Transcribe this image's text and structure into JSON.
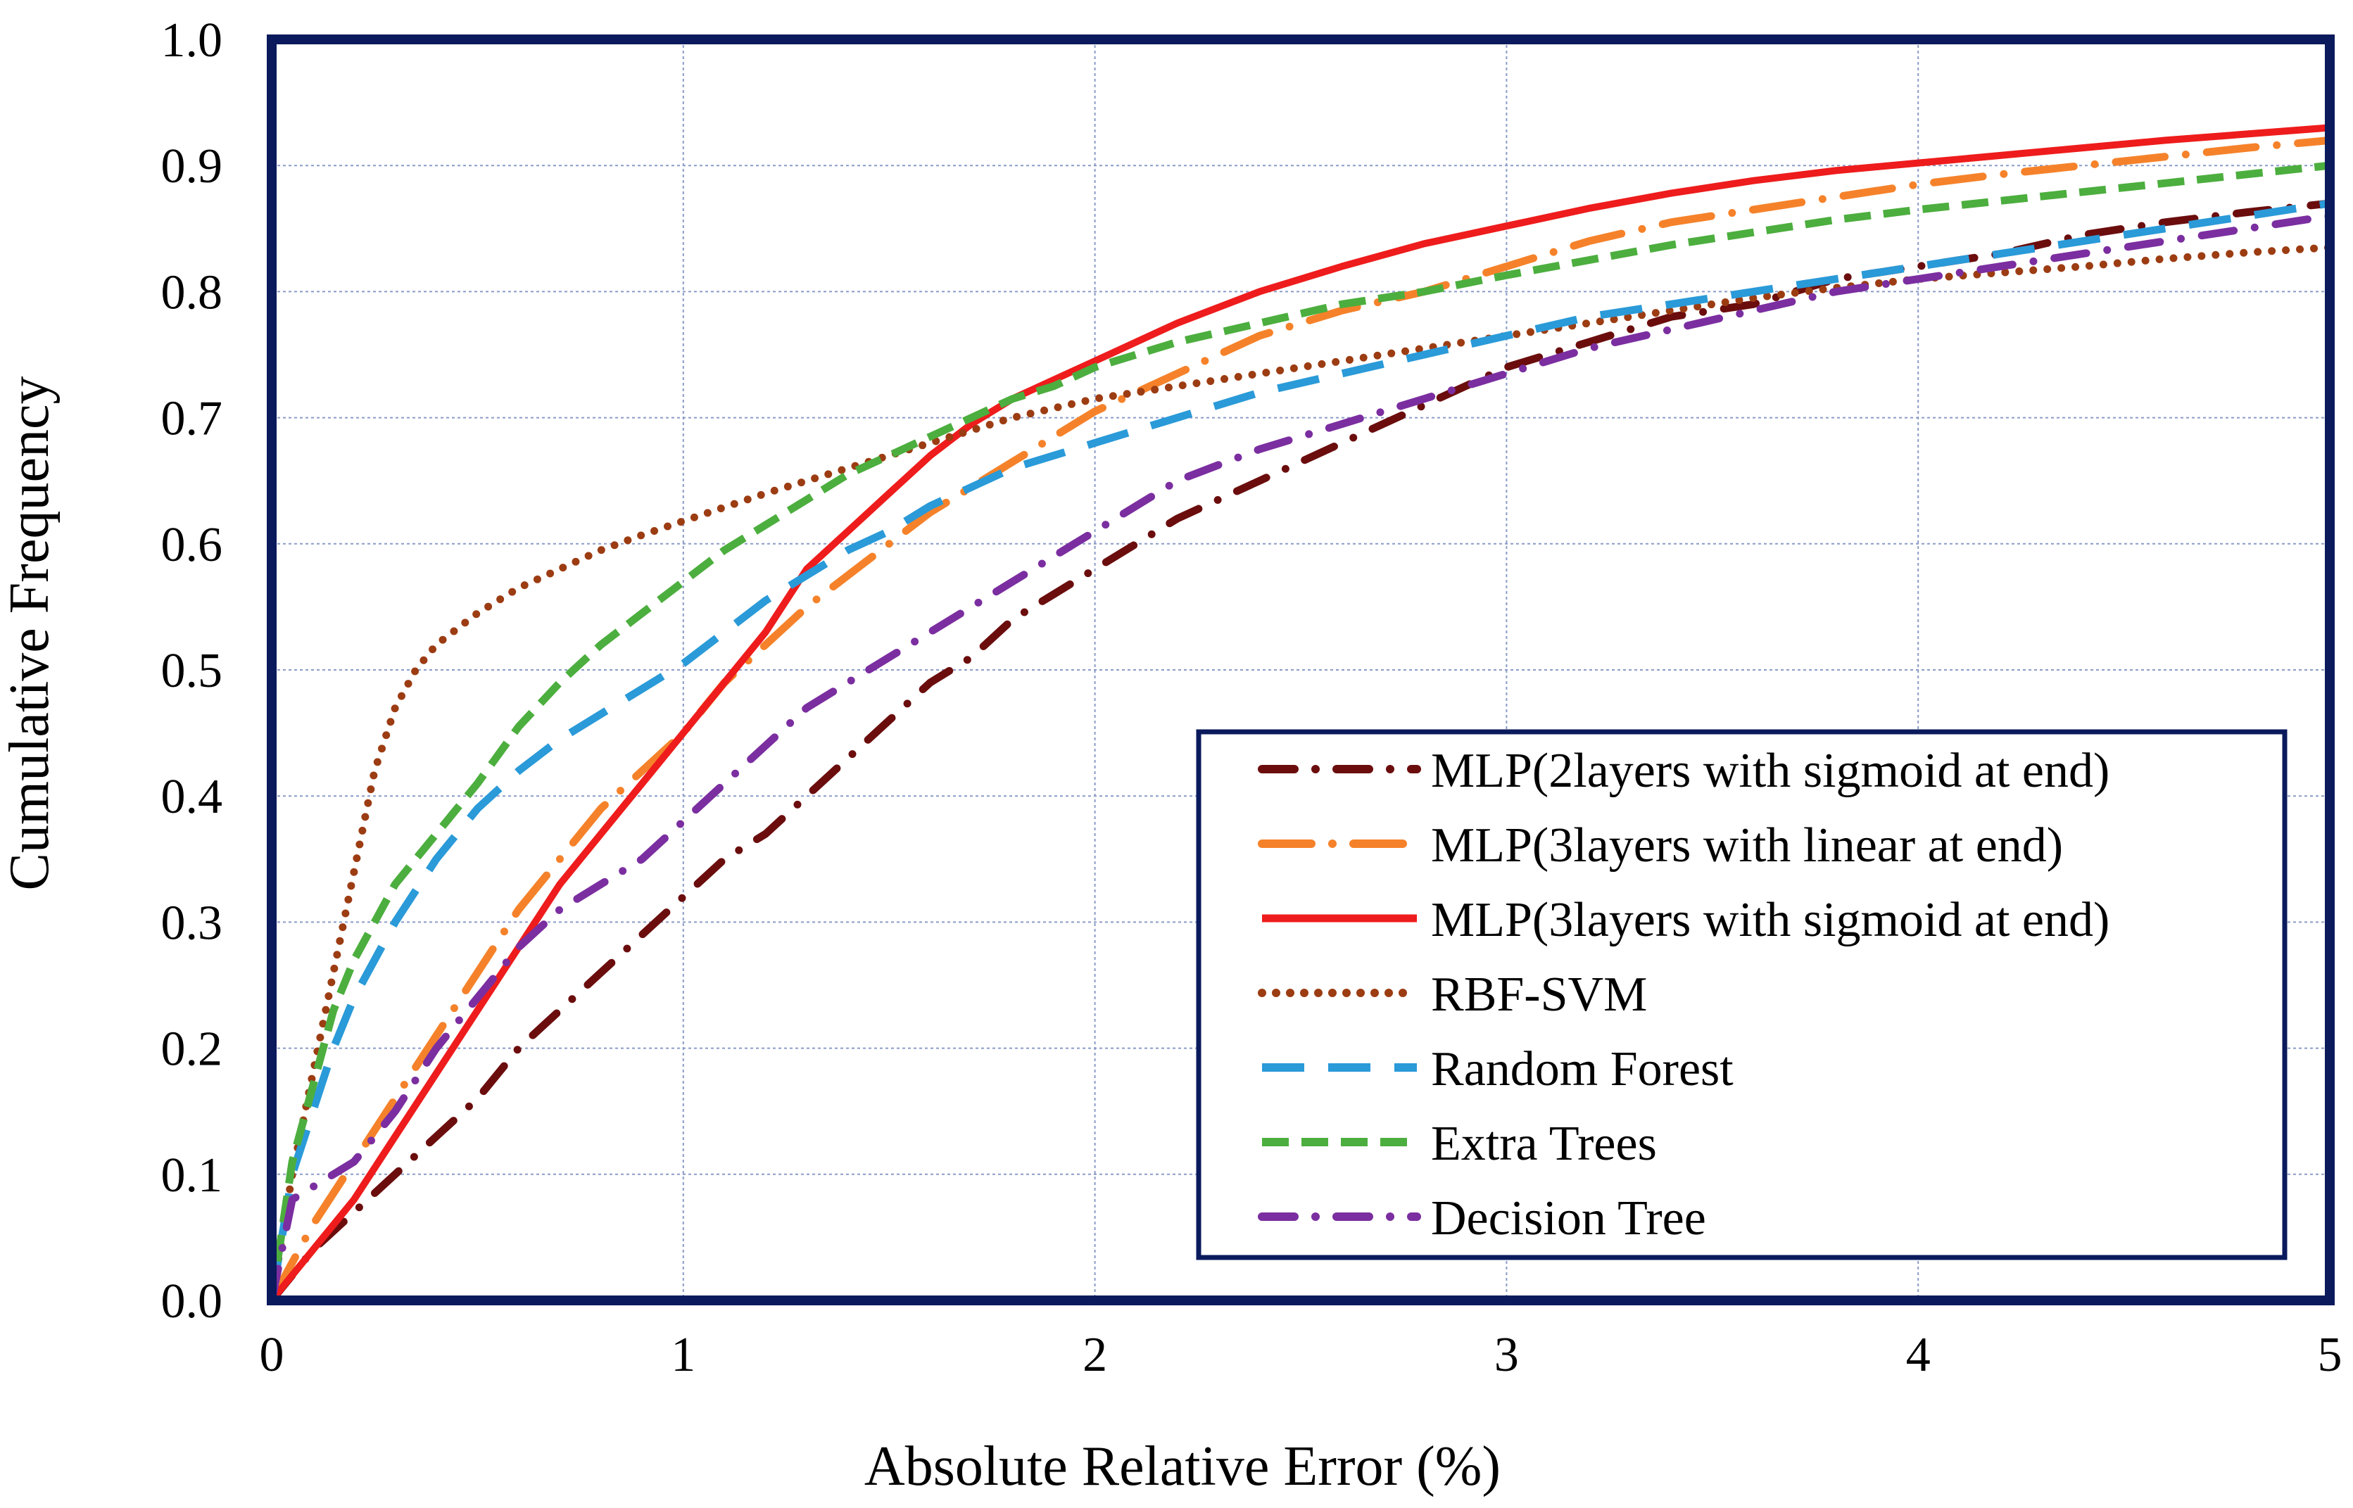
{
  "chart_data": {
    "type": "line",
    "title": "",
    "xlabel": "Absolute Relative Error (%)",
    "ylabel": "Cumulative Frequency",
    "xlim": [
      0,
      5
    ],
    "ylim": [
      0,
      1
    ],
    "xticks": [
      0,
      1,
      2,
      3,
      4,
      5
    ],
    "yticks": [
      0,
      0.1,
      0.2,
      0.3,
      0.4,
      0.5,
      0.6,
      0.7,
      0.8,
      0.9,
      1
    ],
    "xtick_labels": [
      "0",
      "1",
      "2",
      "3",
      "4",
      "5"
    ],
    "ytick_labels": [
      "0.0",
      "0.1",
      "0.2",
      "0.3",
      "0.4",
      "0.5",
      "0.6",
      "0.7",
      "0.8",
      "0.9",
      "1.0"
    ],
    "grid": true,
    "legend_position": "bottom-right",
    "frame_color": "#0a1a5c",
    "grid_color": "#8a9bc6",
    "series": [
      {
        "name": "MLP(2layers with sigmoid at end)",
        "color": "#6b0d0d",
        "style": "dash-dot",
        "x": [
          0,
          0.1,
          0.2,
          0.3,
          0.4,
          0.5,
          0.6,
          0.7,
          0.8,
          0.9,
          1.0,
          1.1,
          1.2,
          1.3,
          1.4,
          1.5,
          1.6,
          1.7,
          1.8,
          1.9,
          2.0,
          2.2,
          2.4,
          2.6,
          2.8,
          3.0,
          3.2,
          3.4,
          3.6,
          3.8,
          4.0,
          4.2,
          4.4,
          4.6,
          4.8,
          5.0
        ],
        "y": [
          0.0,
          0.04,
          0.07,
          0.1,
          0.13,
          0.16,
          0.2,
          0.23,
          0.26,
          0.29,
          0.32,
          0.35,
          0.37,
          0.4,
          0.43,
          0.46,
          0.49,
          0.51,
          0.54,
          0.56,
          0.58,
          0.62,
          0.65,
          0.68,
          0.71,
          0.74,
          0.76,
          0.78,
          0.79,
          0.81,
          0.82,
          0.83,
          0.845,
          0.855,
          0.863,
          0.87
        ]
      },
      {
        "name": "MLP(3layers with linear at end)",
        "color": "#f5822a",
        "style": "long-dash-dot",
        "x": [
          0,
          0.1,
          0.2,
          0.3,
          0.4,
          0.5,
          0.6,
          0.7,
          0.8,
          0.9,
          1.0,
          1.1,
          1.2,
          1.3,
          1.4,
          1.5,
          1.6,
          1.7,
          1.8,
          1.9,
          2.0,
          2.2,
          2.4,
          2.6,
          2.8,
          3.0,
          3.2,
          3.4,
          3.6,
          3.8,
          4.0,
          4.2,
          4.4,
          4.6,
          4.8,
          5.0
        ],
        "y": [
          0.0,
          0.06,
          0.11,
          0.16,
          0.21,
          0.26,
          0.31,
          0.35,
          0.39,
          0.42,
          0.45,
          0.49,
          0.52,
          0.55,
          0.575,
          0.6,
          0.625,
          0.645,
          0.665,
          0.685,
          0.705,
          0.735,
          0.765,
          0.785,
          0.8,
          0.82,
          0.84,
          0.855,
          0.865,
          0.875,
          0.885,
          0.893,
          0.9,
          0.907,
          0.914,
          0.92
        ]
      },
      {
        "name": "MLP(3layers with sigmoid at end)",
        "color": "#ee1c1c",
        "style": "solid",
        "x": [
          0,
          0.1,
          0.2,
          0.3,
          0.4,
          0.5,
          0.6,
          0.7,
          0.8,
          0.9,
          1.0,
          1.1,
          1.2,
          1.3,
          1.4,
          1.5,
          1.6,
          1.7,
          1.8,
          1.9,
          2.0,
          2.2,
          2.4,
          2.6,
          2.8,
          3.0,
          3.2,
          3.4,
          3.6,
          3.8,
          4.0,
          4.2,
          4.4,
          4.6,
          4.8,
          5.0
        ],
        "y": [
          0.0,
          0.04,
          0.08,
          0.13,
          0.18,
          0.23,
          0.28,
          0.33,
          0.37,
          0.41,
          0.45,
          0.49,
          0.53,
          0.58,
          0.61,
          0.64,
          0.67,
          0.695,
          0.715,
          0.73,
          0.745,
          0.775,
          0.8,
          0.82,
          0.838,
          0.852,
          0.866,
          0.878,
          0.888,
          0.896,
          0.902,
          0.908,
          0.914,
          0.92,
          0.925,
          0.93
        ]
      },
      {
        "name": "RBF-SVM",
        "color": "#9c3c12",
        "style": "dotted",
        "x": [
          0,
          0.05,
          0.1,
          0.15,
          0.2,
          0.25,
          0.3,
          0.35,
          0.4,
          0.5,
          0.6,
          0.7,
          0.8,
          0.9,
          1.0,
          1.2,
          1.4,
          1.6,
          1.8,
          2.0,
          2.2,
          2.4,
          2.6,
          2.8,
          3.0,
          3.2,
          3.4,
          3.6,
          3.8,
          4.0,
          4.2,
          4.4,
          4.6,
          4.8,
          5.0
        ],
        "y": [
          0.0,
          0.1,
          0.18,
          0.26,
          0.34,
          0.42,
          0.47,
          0.5,
          0.52,
          0.545,
          0.565,
          0.58,
          0.595,
          0.607,
          0.618,
          0.64,
          0.66,
          0.68,
          0.7,
          0.715,
          0.725,
          0.735,
          0.745,
          0.755,
          0.765,
          0.775,
          0.785,
          0.795,
          0.803,
          0.81,
          0.815,
          0.82,
          0.826,
          0.831,
          0.835
        ]
      },
      {
        "name": "Random Forest",
        "color": "#2a9ad8",
        "style": "long-dash",
        "x": [
          0,
          0.05,
          0.1,
          0.15,
          0.2,
          0.3,
          0.4,
          0.5,
          0.6,
          0.7,
          0.8,
          0.9,
          1.0,
          1.1,
          1.2,
          1.3,
          1.4,
          1.5,
          1.6,
          1.7,
          1.8,
          1.9,
          2.0,
          2.2,
          2.4,
          2.6,
          2.8,
          3.0,
          3.2,
          3.4,
          3.6,
          3.8,
          4.0,
          4.2,
          4.4,
          4.6,
          4.8,
          5.0
        ],
        "y": [
          0.0,
          0.1,
          0.15,
          0.2,
          0.24,
          0.3,
          0.35,
          0.39,
          0.42,
          0.445,
          0.465,
          0.485,
          0.505,
          0.53,
          0.555,
          0.575,
          0.595,
          0.61,
          0.63,
          0.645,
          0.66,
          0.67,
          0.68,
          0.7,
          0.72,
          0.735,
          0.75,
          0.765,
          0.78,
          0.79,
          0.8,
          0.81,
          0.82,
          0.83,
          0.84,
          0.85,
          0.86,
          0.87
        ]
      },
      {
        "name": "Extra Trees",
        "color": "#4cae3e",
        "style": "dash",
        "x": [
          0,
          0.05,
          0.1,
          0.15,
          0.2,
          0.3,
          0.4,
          0.5,
          0.6,
          0.7,
          0.8,
          0.9,
          1.0,
          1.1,
          1.2,
          1.3,
          1.4,
          1.5,
          1.6,
          1.7,
          1.8,
          1.9,
          2.0,
          2.2,
          2.4,
          2.6,
          2.8,
          3.0,
          3.2,
          3.4,
          3.6,
          3.8,
          4.0,
          4.2,
          4.4,
          4.6,
          4.8,
          5.0
        ],
        "y": [
          0.0,
          0.11,
          0.17,
          0.23,
          0.27,
          0.33,
          0.37,
          0.41,
          0.455,
          0.49,
          0.52,
          0.545,
          0.57,
          0.595,
          0.615,
          0.635,
          0.655,
          0.67,
          0.685,
          0.7,
          0.715,
          0.725,
          0.74,
          0.76,
          0.775,
          0.79,
          0.8,
          0.813,
          0.825,
          0.837,
          0.847,
          0.857,
          0.865,
          0.872,
          0.879,
          0.886,
          0.893,
          0.9
        ]
      },
      {
        "name": "Decision Tree",
        "color": "#7b2ea0",
        "style": "dash-dot",
        "x": [
          0,
          0.05,
          0.1,
          0.2,
          0.3,
          0.4,
          0.5,
          0.6,
          0.7,
          0.8,
          0.9,
          1.0,
          1.1,
          1.2,
          1.3,
          1.4,
          1.5,
          1.6,
          1.7,
          1.8,
          1.9,
          2.0,
          2.2,
          2.4,
          2.6,
          2.8,
          3.0,
          3.2,
          3.4,
          3.6,
          3.8,
          4.0,
          4.2,
          4.4,
          4.6,
          4.8,
          5.0
        ],
        "y": [
          0.0,
          0.08,
          0.09,
          0.11,
          0.15,
          0.2,
          0.24,
          0.28,
          0.31,
          0.33,
          0.35,
          0.38,
          0.41,
          0.44,
          0.47,
          0.49,
          0.51,
          0.53,
          0.55,
          0.57,
          0.59,
          0.61,
          0.65,
          0.675,
          0.695,
          0.715,
          0.735,
          0.755,
          0.77,
          0.785,
          0.8,
          0.81,
          0.82,
          0.83,
          0.84,
          0.85,
          0.86
        ]
      }
    ]
  }
}
